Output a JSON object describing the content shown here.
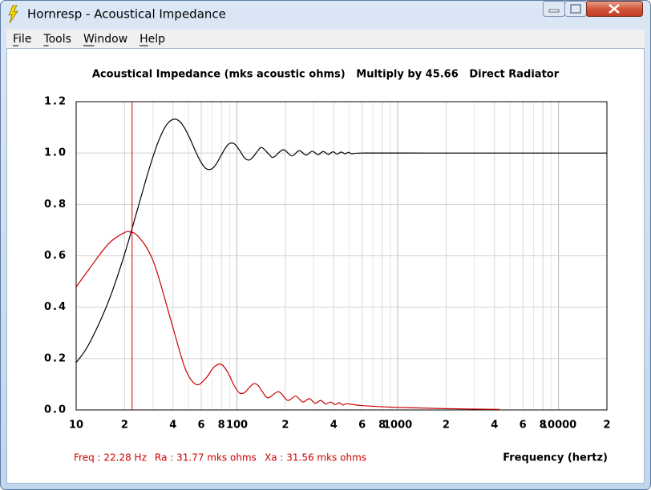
{
  "window": {
    "title": "Hornresp - Acoustical Impedance",
    "menu": [
      "File",
      "Tools",
      "Window",
      "Help"
    ]
  },
  "chart_data": {
    "type": "line",
    "title": "Acoustical Impedance (mks acoustic ohms)   Multiply by 45.66   Direct Radiator",
    "xlabel": "Frequency (hertz)",
    "x_log": true,
    "grid": true,
    "xlim": [
      10,
      20000
    ],
    "ylim": [
      0,
      1.2
    ],
    "xticks": [
      10,
      {
        "value": 20,
        "label": "2"
      },
      {
        "value": 40,
        "label": "4"
      },
      {
        "value": 60,
        "label": "6"
      },
      {
        "value": 80,
        "label": "8"
      },
      100,
      {
        "value": 200,
        "label": "2"
      },
      {
        "value": 400,
        "label": "4"
      },
      {
        "value": 600,
        "label": "6"
      },
      {
        "value": 800,
        "label": "8"
      },
      1000,
      {
        "value": 2000,
        "label": "2"
      },
      {
        "value": 4000,
        "label": "4"
      },
      {
        "value": 6000,
        "label": "6"
      },
      {
        "value": 8000,
        "label": "8"
      },
      10000,
      {
        "value": 20000,
        "label": "2"
      }
    ],
    "xminorticks": [
      30,
      50,
      70,
      90,
      300,
      500,
      700,
      900,
      3000,
      5000,
      7000,
      9000
    ],
    "yticks": [
      {
        "value": 0,
        "label": "0.0"
      },
      0.2,
      0.4,
      0.6,
      0.8,
      {
        "value": 1,
        "label": "1.0"
      },
      1.2
    ],
    "cursor": {
      "x": 22.28,
      "color": "#cc0000"
    },
    "status": [
      "Freq : 22.28 Hz",
      "Ra : 31.77 mks ohms",
      "Xa : 31.56 mks ohms"
    ],
    "status_color": "#cc0000",
    "series": [
      {
        "color": "#000000",
        "x": [
          10,
          12,
          15.9,
          19.9,
          23.9,
          27.9,
          31.9,
          35.9,
          39.9,
          43.9,
          47.8,
          51.8,
          55.8,
          59.8,
          63.8,
          67.8,
          71.8,
          75.8,
          79.7,
          87.7,
          95.7,
          103.7,
          111.6,
          119.6,
          127.6,
          135.6,
          143.5,
          159.5,
          169.1,
          194,
          219,
          244,
          269,
          294,
          319,
          344,
          370,
          395,
          420,
          445,
          470,
          495,
          520,
          600,
          1500,
          20000
        ],
        "values": [
          0.184,
          0.256,
          0.423,
          0.602,
          0.774,
          0.921,
          1.033,
          1.103,
          1.131,
          1.124,
          1.092,
          1.047,
          1.001,
          0.964,
          0.941,
          0.936,
          0.945,
          0.966,
          0.991,
          1.032,
          1.037,
          1.011,
          0.981,
          0.973,
          0.989,
          1.011,
          1.021,
          0.993,
          0.984,
          1.013,
          0.989,
          1.009,
          0.992,
          1.007,
          0.994,
          1.006,
          0.995,
          1.005,
          0.996,
          1.004,
          0.997,
          1.003,
          0.997,
          1,
          1,
          1
        ]
      },
      {
        "color": "#cc0000",
        "x": [
          10,
          12,
          15.9,
          19.9,
          21.9,
          23.9,
          27.9,
          31.9,
          39.9,
          47.8,
          55.8,
          63.8,
          71.8,
          79.7,
          87.7,
          95.7,
          103.7,
          111.6,
          119.6,
          127.6,
          135.6,
          143.5,
          156.6,
          181.6,
          206.7,
          231.7,
          256.8,
          281.8,
          306.9,
          332,
          357,
          382,
          407,
          432,
          457,
          482,
          600,
          1000,
          2000,
          4300
        ],
        "values": [
          0.479,
          0.547,
          0.647,
          0.69,
          0.692,
          0.68,
          0.624,
          0.535,
          0.323,
          0.159,
          0.099,
          0.122,
          0.166,
          0.178,
          0.146,
          0.097,
          0.066,
          0.068,
          0.088,
          0.102,
          0.095,
          0.072,
          0.047,
          0.071,
          0.037,
          0.054,
          0.031,
          0.044,
          0.026,
          0.037,
          0.023,
          0.031,
          0.021,
          0.028,
          0.019,
          0.024,
          0.017,
          0.01,
          0.005,
          0.002
        ]
      }
    ]
  }
}
